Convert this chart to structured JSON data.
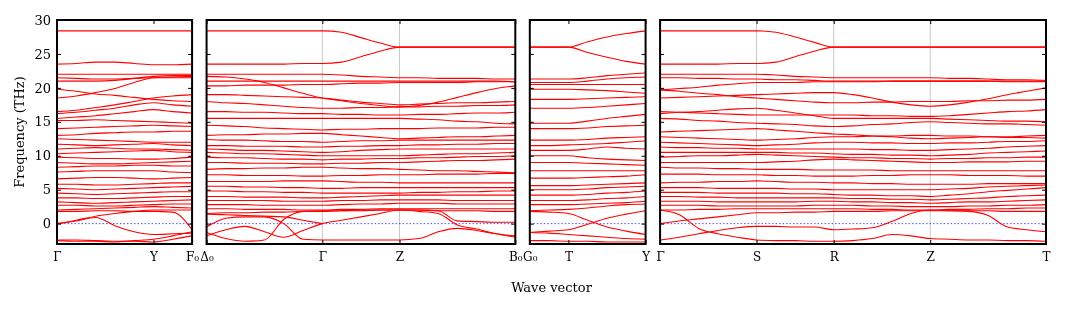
{
  "chart_data": [
    {
      "type": "line",
      "ylabel": "Frequency (THz)",
      "color": "#ff0000",
      "categories": [
        "Γ",
        null,
        null,
        null,
        null,
        "Y",
        null,
        "F₀"
      ],
      "ylim": [
        -3,
        30
      ],
      "yticks": [
        0,
        5,
        10,
        15,
        20,
        25,
        30
      ],
      "ref_lines": [
        {
          "axis": "y",
          "value": 0,
          "color": "#0000ff",
          "line_style": "dotted"
        }
      ],
      "series": [
        {
          "values": [
            28.4,
            28.4,
            28.4,
            28.4,
            28.4,
            28.4,
            28.4,
            28.4
          ]
        },
        {
          "values": [
            23.5,
            23.6,
            23.8,
            23.8,
            23.6,
            23.4,
            23.4,
            23.5
          ]
        },
        {
          "values": [
            22.0,
            22.0,
            22.0,
            22.0,
            22.0,
            22.0,
            22.0,
            22.0
          ]
        },
        {
          "values": [
            21.5,
            21.4,
            21.3,
            21.3,
            21.4,
            21.5,
            21.5,
            21.5
          ]
        },
        {
          "values": [
            21.0,
            21.0,
            21.0,
            21.1,
            21.4,
            21.7,
            21.8,
            21.8
          ]
        },
        {
          "values": [
            18.5,
            18.8,
            19.3,
            19.9,
            20.8,
            21.5,
            21.6,
            21.7
          ]
        },
        {
          "values": [
            19.8,
            19.5,
            19.1,
            18.9,
            18.6,
            18.3,
            18.1,
            18.0
          ]
        },
        {
          "values": [
            16.5,
            16.7,
            17.1,
            17.5,
            18.0,
            18.5,
            18.8,
            19.0
          ]
        },
        {
          "values": [
            16.2,
            16.4,
            16.7,
            17.0,
            17.5,
            17.8,
            17.5,
            17.3
          ]
        },
        {
          "values": [
            15.5,
            15.7,
            15.9,
            16.2,
            16.5,
            16.8,
            16.5,
            16.3
          ]
        },
        {
          "values": [
            15.2,
            15.2,
            15.3,
            15.2,
            15.1,
            15.0,
            14.9,
            14.8
          ]
        },
        {
          "values": [
            14.0,
            14.1,
            14.2,
            14.3,
            14.4,
            14.5,
            14.4,
            14.3
          ]
        },
        {
          "values": [
            13.0,
            13.1,
            13.3,
            13.4,
            13.5,
            13.5,
            13.6,
            13.6
          ]
        },
        {
          "values": [
            12.5,
            12.4,
            12.3,
            12.2,
            12.1,
            12.0,
            12.0,
            12.0
          ]
        },
        {
          "values": [
            11.7,
            11.6,
            11.5,
            11.6,
            11.7,
            11.8,
            11.6,
            11.5
          ]
        },
        {
          "values": [
            11.0,
            11.1,
            11.2,
            11.1,
            11.0,
            11.0,
            10.9,
            10.8
          ]
        },
        {
          "values": [
            10.3,
            10.4,
            10.5,
            10.6,
            10.7,
            10.8,
            10.6,
            10.5
          ]
        },
        {
          "values": [
            9.8,
            9.7,
            9.6,
            9.6,
            9.5,
            9.5,
            9.6,
            9.8
          ]
        },
        {
          "values": [
            9.0,
            8.9,
            8.8,
            8.8,
            8.9,
            9.0,
            9.1,
            9.2
          ]
        },
        {
          "values": [
            8.3,
            8.4,
            8.5,
            8.5,
            8.6,
            8.6,
            8.5,
            8.5
          ]
        },
        {
          "values": [
            7.6,
            7.7,
            7.8,
            7.8,
            7.8,
            7.8,
            7.6,
            7.5
          ]
        },
        {
          "values": [
            6.6,
            6.7,
            6.8,
            6.8,
            6.7,
            6.6,
            6.7,
            6.8
          ]
        },
        {
          "values": [
            5.8,
            5.8,
            5.7,
            5.7,
            5.8,
            5.9,
            6.0,
            6.0
          ]
        },
        {
          "values": [
            5.2,
            5.1,
            5.0,
            5.1,
            5.2,
            5.3,
            5.4,
            5.5
          ]
        },
        {
          "values": [
            4.5,
            4.4,
            4.3,
            4.4,
            4.5,
            4.6,
            4.7,
            4.7
          ]
        },
        {
          "values": [
            3.8,
            3.8,
            3.7,
            3.7,
            3.8,
            3.9,
            4.0,
            4.0
          ]
        },
        {
          "values": [
            3.2,
            3.1,
            3.0,
            3.1,
            3.2,
            3.3,
            3.4,
            3.5
          ]
        },
        {
          "values": [
            2.7,
            2.7,
            2.6,
            2.6,
            2.7,
            2.8,
            2.9,
            2.9
          ]
        },
        {
          "values": [
            2.0,
            2.1,
            2.2,
            2.3,
            2.4,
            2.5,
            2.4,
            2.3
          ]
        },
        {
          "values": [
            0,
            0.5,
            1.1,
            1.5,
            1.8,
            2.0,
            2.0,
            2.0
          ]
        },
        {
          "values": [
            0,
            0.4,
            0.9,
            -0.3,
            -1.2,
            -1.6,
            -1.5,
            -1.4
          ]
        },
        {
          "values": [
            1.8,
            1.8,
            1.9,
            1.9,
            1.8,
            1.8,
            1.7,
            -0.9
          ]
        },
        {
          "values": [
            -2.4,
            -2.4,
            -2.5,
            -2.6,
            -2.6,
            -2.7,
            -2.3,
            -1.8
          ]
        },
        {
          "values": [
            -2.5,
            -2.6,
            -2.6,
            -2.7,
            -2.5,
            -2.3,
            -1.8,
            -1.2
          ]
        }
      ]
    },
    {
      "type": "line",
      "color": "#ff0000",
      "grid": "x",
      "tick_labels": "x",
      "categories": [
        "Δ₀",
        null,
        null,
        null,
        null,
        null,
        "Γ",
        null,
        null,
        null,
        "Z",
        null,
        null,
        null,
        null,
        null,
        "B₀"
      ],
      "ylim": [
        -3,
        30
      ],
      "yticks": [
        0,
        5,
        10,
        15,
        20,
        25,
        30
      ],
      "ref_lines": [
        {
          "axis": "y",
          "value": 0,
          "color": "#0000ff",
          "line_style": "dotted"
        }
      ],
      "series": [
        {
          "values": [
            28.4,
            28.4,
            28.4,
            28.4,
            28.4,
            28.4,
            28.4,
            28.2,
            27.4,
            26.6,
            26.0,
            26.0,
            26.0,
            26.0,
            26.0,
            26.0,
            26.0
          ]
        },
        {
          "values": [
            23.5,
            23.5,
            23.5,
            23.5,
            23.5,
            23.6,
            23.6,
            23.8,
            24.6,
            25.4,
            26.0,
            26.0,
            26.0,
            26.0,
            26.0,
            26.0,
            26.0
          ]
        },
        {
          "values": [
            22.0,
            22.0,
            22.0,
            22.0,
            22.0,
            22.0,
            22.0,
            21.9,
            21.7,
            21.6,
            21.5,
            21.5,
            21.4,
            21.4,
            21.4,
            21.3,
            21.3
          ]
        },
        {
          "values": [
            21.7,
            21.6,
            21.3,
            20.8,
            20.0,
            19.2,
            18.5,
            18.1,
            17.7,
            17.4,
            17.2,
            17.4,
            17.9,
            18.6,
            19.3,
            19.9,
            20.3
          ]
        },
        {
          "values": [
            21.0,
            21.0,
            21.0,
            21.0,
            21.0,
            21.0,
            21.0,
            21.0,
            21.0,
            21.0,
            21.0,
            21.0,
            21.0,
            21.0,
            21.0,
            21.0,
            20.9
          ]
        },
        {
          "values": [
            20.3,
            20.3,
            20.4,
            20.4,
            20.4,
            20.5,
            20.5,
            20.6,
            20.7,
            20.7,
            20.8,
            20.8,
            20.8,
            20.8,
            20.9,
            20.9,
            20.9
          ]
        },
        {
          "values": [
            19.0,
            19.0,
            18.9,
            18.8,
            18.7,
            18.6,
            18.5,
            18.2,
            17.9,
            17.7,
            17.5,
            17.6,
            17.7,
            17.8,
            17.8,
            17.9,
            18.0
          ]
        },
        {
          "values": [
            18.0,
            17.8,
            17.7,
            17.5,
            17.3,
            17.1,
            17.0,
            17.0,
            17.1,
            17.1,
            17.2,
            17.2,
            17.3,
            17.3,
            17.4,
            17.4,
            17.5
          ]
        },
        {
          "values": [
            16.5,
            16.5,
            16.4,
            16.4,
            16.3,
            16.2,
            16.2,
            16.1,
            16.1,
            16.0,
            16.0,
            16.1,
            16.1,
            16.2,
            16.3,
            16.3,
            16.4
          ]
        },
        {
          "values": [
            15.5,
            15.5,
            15.5,
            15.5,
            15.5,
            15.5,
            15.5,
            15.5,
            15.5,
            15.5,
            15.5,
            15.4,
            15.3,
            15.1,
            15.0,
            14.8,
            14.7
          ]
        },
        {
          "values": [
            14.5,
            14.4,
            14.3,
            14.1,
            14.0,
            13.9,
            13.8,
            13.9,
            13.9,
            14.0,
            14.0,
            14.0,
            14.1,
            14.1,
            14.1,
            14.2,
            14.2
          ]
        },
        {
          "values": [
            13.0,
            13.1,
            13.1,
            13.2,
            13.2,
            13.3,
            13.3,
            13.1,
            12.9,
            12.7,
            12.5,
            12.6,
            12.7,
            12.8,
            12.8,
            12.9,
            13.0
          ]
        },
        {
          "values": [
            12.4,
            12.3,
            12.3,
            12.2,
            12.1,
            12.1,
            12.0,
            12.1,
            12.2,
            12.2,
            12.3,
            12.3,
            12.3,
            12.3,
            12.3,
            12.3,
            12.3
          ]
        },
        {
          "values": [
            11.5,
            11.5,
            11.4,
            11.4,
            11.4,
            11.3,
            11.3,
            11.4,
            11.4,
            11.5,
            11.5,
            11.6,
            11.6,
            11.7,
            11.7,
            11.8,
            11.8
          ]
        },
        {
          "values": [
            11.0,
            10.9,
            10.8,
            10.8,
            10.7,
            10.6,
            10.5,
            10.6,
            10.8,
            10.9,
            11.0,
            11.0,
            11.0,
            11.0,
            11.0,
            11.0,
            11.0
          ]
        },
        {
          "values": [
            10.5,
            10.4,
            10.3,
            10.3,
            10.2,
            10.1,
            10.0,
            10.0,
            10.0,
            10.0,
            10.0,
            10.1,
            10.2,
            10.3,
            10.3,
            10.4,
            10.5
          ]
        },
        {
          "values": [
            9.8,
            9.7,
            9.7,
            9.6,
            9.5,
            9.5,
            9.4,
            9.5,
            9.5,
            9.6,
            9.6,
            9.7,
            9.7,
            9.8,
            9.9,
            9.9,
            10.0
          ]
        },
        {
          "values": [
            9.0,
            9.0,
            8.9,
            8.9,
            8.9,
            8.8,
            8.8,
            8.9,
            8.9,
            9.0,
            9.0,
            9.1,
            9.2,
            9.3,
            9.3,
            9.4,
            9.5
          ]
        },
        {
          "values": [
            8.0,
            8.1,
            8.1,
            8.2,
            8.2,
            8.3,
            8.3,
            8.2,
            8.1,
            8.1,
            8.0,
            7.9,
            7.8,
            7.8,
            7.7,
            7.6,
            7.5
          ]
        },
        {
          "values": [
            7.2,
            7.2,
            7.1,
            7.1,
            7.1,
            7.0,
            7.0,
            7.1,
            7.1,
            7.2,
            7.2,
            7.2,
            7.3,
            7.3,
            7.3,
            7.4,
            7.4
          ]
        },
        {
          "values": [
            6.2,
            6.2,
            6.2,
            6.2,
            6.3,
            6.3,
            6.3,
            6.2,
            6.1,
            6.1,
            6.0,
            6.0,
            6.0,
            6.0,
            6.0,
            6.0,
            6.0
          ]
        },
        {
          "values": [
            5.5,
            5.5,
            5.4,
            5.4,
            5.3,
            5.3,
            5.2,
            5.2,
            5.3,
            5.3,
            5.3,
            5.3,
            5.3,
            5.3,
            5.3,
            5.3,
            5.3
          ]
        },
        {
          "values": [
            4.8,
            4.8,
            4.7,
            4.7,
            4.6,
            4.6,
            4.5,
            4.5,
            4.5,
            4.5,
            4.5,
            4.6,
            4.6,
            4.7,
            4.7,
            4.8,
            4.8
          ]
        },
        {
          "values": [
            4.0,
            4.0,
            3.9,
            3.9,
            3.9,
            3.8,
            3.8,
            3.9,
            4.0,
            4.1,
            4.2,
            4.2,
            4.2,
            4.2,
            4.2,
            4.2,
            4.2
          ]
        },
        {
          "values": [
            3.4,
            3.4,
            3.4,
            3.4,
            3.3,
            3.3,
            3.3,
            3.4,
            3.4,
            3.5,
            3.5,
            3.5,
            3.5,
            3.4,
            3.4,
            3.4,
            3.4
          ]
        },
        {
          "values": [
            2.8,
            2.8,
            2.8,
            2.7,
            2.7,
            2.7,
            2.7,
            2.8,
            2.9,
            2.9,
            3.0,
            3.0,
            3.0,
            2.9,
            2.9,
            2.9,
            2.9
          ]
        },
        {
          "values": [
            2.2,
            2.2,
            2.1,
            2.1,
            2.1,
            2.0,
            2.0,
            2.1,
            2.1,
            2.2,
            2.2,
            2.2,
            2.2,
            2.2,
            2.2,
            2.2,
            2.2
          ]
        },
        {
          "values": [
            1.5,
            1.6,
            1.6,
            1.7,
            1.7,
            1.8,
            1.8,
            1.9,
            1.9,
            2.0,
            2.0,
            2.0,
            1.9,
            1.9,
            1.9,
            1.8,
            1.8
          ]
        },
        {
          "values": [
            -0.5,
            0.8,
            1.0,
            1.0,
            0.0,
            -2.3,
            -2.4,
            -2.4,
            -2.4,
            -2.4,
            -2.4,
            -2.2,
            -1.2,
            -0.7,
            -1.0,
            -1.5,
            -1.8
          ]
        },
        {
          "values": [
            -1.3,
            -2.2,
            -2.6,
            -2.4,
            0.6,
            1.8,
            1.9,
            1.9,
            2.0,
            2.0,
            2.0,
            1.8,
            1.5,
            -0.2,
            -0.8,
            -1.5,
            -2.0
          ]
        },
        {
          "values": [
            -1.8,
            -0.9,
            -0.4,
            -1.2,
            -2.0,
            -1.0,
            0,
            0.5,
            1.0,
            1.5,
            2.0,
            2.0,
            1.9,
            0.4,
            0.3,
            0.2,
            0.2
          ]
        },
        {
          "values": [
            1.4,
            1.3,
            1.2,
            1.1,
            1.0,
            0.5,
            0,
            null,
            null,
            null,
            null,
            null,
            null,
            null,
            null,
            null,
            null
          ]
        }
      ]
    },
    {
      "type": "line",
      "xlabel": "Wave vector",
      "color": "#ff0000",
      "tick_labels": "x",
      "categories": [
        "G₀",
        null,
        "T",
        null,
        null,
        null,
        "Y"
      ],
      "ylim": [
        -3,
        30
      ],
      "yticks": [
        0,
        5,
        10,
        15,
        20,
        25,
        30
      ],
      "ref_lines": [
        {
          "axis": "y",
          "value": 0,
          "color": "#0000ff",
          "line_style": "dotted"
        }
      ],
      "series": [
        {
          "values": [
            26.0,
            26.0,
            26.0,
            26.8,
            27.5,
            28.0,
            28.4
          ]
        },
        {
          "values": [
            26.0,
            26.0,
            26.0,
            25.2,
            24.5,
            23.9,
            23.5
          ]
        },
        {
          "values": [
            21.3,
            21.3,
            21.3,
            21.5,
            21.8,
            22.0,
            22.2
          ]
        },
        {
          "values": [
            20.8,
            20.8,
            20.8,
            21.0,
            21.3,
            21.5,
            21.6
          ]
        },
        {
          "values": [
            20.5,
            20.5,
            20.5,
            20.5,
            20.5,
            20.5,
            20.5
          ]
        },
        {
          "values": [
            19.8,
            19.8,
            19.8,
            19.7,
            19.6,
            19.4,
            19.2
          ]
        },
        {
          "values": [
            18.3,
            18.3,
            18.3,
            18.4,
            18.5,
            18.6,
            18.7
          ]
        },
        {
          "values": [
            17.0,
            17.0,
            17.0,
            17.1,
            17.3,
            17.5,
            17.7
          ]
        },
        {
          "values": [
            14.8,
            14.8,
            14.8,
            15.1,
            15.5,
            15.8,
            16.1
          ]
        },
        {
          "values": [
            14.0,
            14.0,
            14.0,
            14.1,
            14.3,
            14.4,
            14.5
          ]
        },
        {
          "values": [
            12.3,
            12.3,
            12.3,
            12.4,
            12.6,
            12.7,
            12.8
          ]
        },
        {
          "values": [
            11.5,
            11.5,
            11.6,
            11.7,
            11.8,
            12.0,
            12.2
          ]
        },
        {
          "values": [
            10.8,
            10.8,
            10.8,
            11.0,
            11.3,
            11.1,
            11.0
          ]
        },
        {
          "values": [
            10.0,
            10.0,
            10.0,
            9.7,
            9.5,
            9.4,
            9.3
          ]
        },
        {
          "values": [
            9.0,
            9.0,
            9.0,
            8.9,
            8.8,
            8.7,
            8.6
          ]
        },
        {
          "values": [
            7.8,
            7.8,
            7.8,
            7.8,
            7.8,
            7.8,
            7.8
          ]
        },
        {
          "values": [
            6.7,
            6.7,
            6.7,
            6.8,
            6.9,
            7.0,
            7.2
          ]
        },
        {
          "values": [
            5.6,
            5.6,
            5.6,
            5.7,
            5.8,
            5.9,
            6.0
          ]
        },
        {
          "values": [
            5.0,
            5.0,
            5.0,
            5.1,
            5.3,
            5.4,
            5.5
          ]
        },
        {
          "values": [
            4.2,
            4.2,
            4.2,
            4.3,
            4.5,
            4.6,
            4.8
          ]
        },
        {
          "values": [
            3.4,
            3.4,
            3.4,
            3.5,
            3.7,
            3.8,
            4.0
          ]
        },
        {
          "values": [
            2.8,
            2.8,
            2.8,
            2.9,
            3.0,
            3.1,
            3.3
          ]
        },
        {
          "values": [
            1.9,
            2.0,
            2.1,
            2.3,
            2.6,
            2.8,
            2.9
          ]
        },
        {
          "values": [
            1.8,
            1.7,
            1.5,
            0.5,
            -0.5,
            -1.1,
            -1.6
          ]
        },
        {
          "values": [
            -1.3,
            -1.1,
            -0.9,
            -0.1,
            0.8,
            1.4,
            1.9
          ]
        },
        {
          "values": [
            -1.3,
            -1.4,
            -1.6,
            -1.8,
            -2.0,
            -2.2,
            -2.3
          ]
        },
        {
          "values": [
            -2.5,
            -2.5,
            -2.6,
            -2.6,
            -2.7,
            -2.7,
            -2.7
          ]
        }
      ]
    },
    {
      "type": "line",
      "color": "#ff0000",
      "grid": "x",
      "tick_labels": "x",
      "categories": [
        "Γ",
        null,
        null,
        null,
        null,
        "S",
        null,
        null,
        null,
        "R",
        null,
        null,
        null,
        null,
        "Z",
        null,
        null,
        null,
        null,
        null,
        "T"
      ],
      "ylim": [
        -3,
        30
      ],
      "yticks": [
        0,
        5,
        10,
        15,
        20,
        25,
        30
      ],
      "ref_lines": [
        {
          "axis": "y",
          "value": 0,
          "color": "#0000ff",
          "line_style": "dotted"
        }
      ],
      "series": [
        {
          "values": [
            28.4,
            28.4,
            28.4,
            28.4,
            28.4,
            28.4,
            28.2,
            27.5,
            26.7,
            26.0,
            26.0,
            26.0,
            26.0,
            26.0,
            26.0,
            26.0,
            26.0,
            26.0,
            26.0,
            26.0,
            26.0
          ]
        },
        {
          "values": [
            23.5,
            23.5,
            23.5,
            23.5,
            23.6,
            23.6,
            23.8,
            24.6,
            25.4,
            26.0,
            26.0,
            26.0,
            26.0,
            26.0,
            26.0,
            26.0,
            26.0,
            26.0,
            26.0,
            26.0,
            26.0
          ]
        },
        {
          "values": [
            22.0,
            22.0,
            22.0,
            22.0,
            22.0,
            22.0,
            21.9,
            21.7,
            21.6,
            21.5,
            21.5,
            21.5,
            21.5,
            21.5,
            21.5,
            21.4,
            21.4,
            21.3,
            21.2,
            21.2,
            21.1
          ]
        },
        {
          "values": [
            21.5,
            21.5,
            21.4,
            21.4,
            21.3,
            21.3,
            21.2,
            21.2,
            21.1,
            21.0,
            21.0,
            21.0,
            21.0,
            21.0,
            21.0,
            21.0,
            21.0,
            21.0,
            21.0,
            21.0,
            21.0
          ]
        },
        {
          "values": [
            19.7,
            19.9,
            20.1,
            20.4,
            20.6,
            20.8,
            20.8,
            20.8,
            20.9,
            20.9,
            20.9,
            20.9,
            21.0,
            21.0,
            21.0,
            21.0,
            21.0,
            21.0,
            20.9,
            20.9,
            20.9
          ]
        },
        {
          "values": [
            18.5,
            18.6,
            18.7,
            18.8,
            18.9,
            19.0,
            19.1,
            19.2,
            19.3,
            19.3,
            19.0,
            18.5,
            17.9,
            17.5,
            17.3,
            17.5,
            17.9,
            18.4,
            19.0,
            19.5,
            20.0
          ]
        },
        {
          "values": [
            19.7,
            19.5,
            19.2,
            19.0,
            18.7,
            18.5,
            18.3,
            18.1,
            17.9,
            17.8,
            17.8,
            17.9,
            17.9,
            18.0,
            18.0,
            18.0,
            18.1,
            18.1,
            18.2,
            18.2,
            18.3
          ]
        },
        {
          "values": [
            16.5,
            16.4,
            16.3,
            16.2,
            16.1,
            16.0,
            16.0,
            16.0,
            16.0,
            16.0,
            16.0,
            15.9,
            15.9,
            15.8,
            15.8,
            15.9,
            16.1,
            16.3,
            16.5,
            16.6,
            16.8
          ]
        },
        {
          "values": [
            16.2,
            16.4,
            16.5,
            16.7,
            16.9,
            17.0,
            16.7,
            16.3,
            15.9,
            15.5,
            15.5,
            15.5,
            15.5,
            15.5,
            15.5,
            15.4,
            15.3,
            15.2,
            15.1,
            15.1,
            15.0
          ]
        },
        {
          "values": [
            15.5,
            15.4,
            15.2,
            15.1,
            14.9,
            14.8,
            14.7,
            14.6,
            14.4,
            14.3,
            14.4,
            14.6,
            14.7,
            14.9,
            15.0,
            14.9,
            14.8,
            14.7,
            14.7,
            14.6,
            14.5
          ]
        },
        {
          "values": [
            13.5,
            13.6,
            13.7,
            13.8,
            13.9,
            14.0,
            13.8,
            13.6,
            13.4,
            13.2,
            13.1,
            12.9,
            12.8,
            12.6,
            12.5,
            12.6,
            12.7,
            12.8,
            12.8,
            12.9,
            13.0
          ]
        },
        {
          "values": [
            12.8,
            12.7,
            12.6,
            12.5,
            12.4,
            12.3,
            12.4,
            12.5,
            12.7,
            12.8,
            12.8,
            12.9,
            12.9,
            13.0,
            13.0,
            12.9,
            12.9,
            12.8,
            12.7,
            12.7,
            12.6
          ]
        },
        {
          "values": [
            12.0,
            11.9,
            11.8,
            11.7,
            11.6,
            11.5,
            11.6,
            11.7,
            11.9,
            12.0,
            12.0,
            11.9,
            11.9,
            11.8,
            11.8,
            11.9,
            11.9,
            12.0,
            12.1,
            12.1,
            12.2
          ]
        },
        {
          "values": [
            11.3,
            11.2,
            11.2,
            11.1,
            11.1,
            11.0,
            11.0,
            11.0,
            11.0,
            11.0,
            11.0,
            10.9,
            10.9,
            10.8,
            10.8,
            10.9,
            11.0,
            11.1,
            11.3,
            11.4,
            11.5
          ]
        },
        {
          "values": [
            10.5,
            10.5,
            10.5,
            10.5,
            10.5,
            10.5,
            10.5,
            10.4,
            10.4,
            10.3,
            10.2,
            10.2,
            10.1,
            10.1,
            10.0,
            10.1,
            10.2,
            10.4,
            10.5,
            10.6,
            10.7
          ]
        },
        {
          "values": [
            9.8,
            9.9,
            10.0,
            10.0,
            10.1,
            10.2,
            10.1,
            10.0,
            9.9,
            9.8,
            9.7,
            9.7,
            9.6,
            9.6,
            9.5,
            9.6,
            9.6,
            9.7,
            9.7,
            9.8,
            9.8
          ]
        },
        {
          "values": [
            9.0,
            9.0,
            9.0,
            9.0,
            9.0,
            9.0,
            9.1,
            9.2,
            9.4,
            9.5,
            9.4,
            9.3,
            9.2,
            9.1,
            9.0,
            9.0,
            9.1,
            9.1,
            9.1,
            9.2,
            9.2
          ]
        },
        {
          "values": [
            8.3,
            8.2,
            8.2,
            8.1,
            8.1,
            8.0,
            8.0,
            8.0,
            7.9,
            7.9,
            7.9,
            7.9,
            7.8,
            7.8,
            7.8,
            7.8,
            7.8,
            7.8,
            7.8,
            7.8,
            7.8
          ]
        },
        {
          "values": [
            7.3,
            7.3,
            7.3,
            7.2,
            7.2,
            7.2,
            7.1,
            7.1,
            7.0,
            7.0,
            7.0,
            7.1,
            7.1,
            7.2,
            7.2,
            7.2,
            7.1,
            7.1,
            7.1,
            7.0,
            7.0
          ]
        },
        {
          "values": [
            6.0,
            6.1,
            6.1,
            6.2,
            6.2,
            6.3,
            6.2,
            6.1,
            6.1,
            6.0,
            6.0,
            5.9,
            5.9,
            5.8,
            5.8,
            5.8,
            5.8,
            5.9,
            5.9,
            5.9,
            5.9
          ]
        },
        {
          "values": [
            5.3,
            5.3,
            5.3,
            5.2,
            5.2,
            5.2,
            5.2,
            5.1,
            5.1,
            5.0,
            5.0,
            5.0,
            5.0,
            5.0,
            5.0,
            5.1,
            5.2,
            5.4,
            5.5,
            5.6,
            5.7
          ]
        },
        {
          "values": [
            4.6,
            4.6,
            4.6,
            4.5,
            4.5,
            4.5,
            4.5,
            4.4,
            4.4,
            4.3,
            4.2,
            4.2,
            4.1,
            4.1,
            4.0,
            4.2,
            4.4,
            4.7,
            4.9,
            5.1,
            5.3
          ]
        },
        {
          "values": [
            4.0,
            4.0,
            3.9,
            3.9,
            3.8,
            3.8,
            3.8,
            3.8,
            3.8,
            3.8,
            3.7,
            3.7,
            3.6,
            3.6,
            3.5,
            3.6,
            3.7,
            3.8,
            4.0,
            4.1,
            4.2
          ]
        },
        {
          "values": [
            3.3,
            3.3,
            3.3,
            3.2,
            3.2,
            3.2,
            3.2,
            3.2,
            3.3,
            3.3,
            3.2,
            3.2,
            3.1,
            3.1,
            3.0,
            3.1,
            3.2,
            3.2,
            3.3,
            3.4,
            3.5
          ]
        },
        {
          "values": [
            2.7,
            2.7,
            2.7,
            2.6,
            2.6,
            2.6,
            2.6,
            2.6,
            2.7,
            2.7,
            2.7,
            2.6,
            2.6,
            2.5,
            2.5,
            2.5,
            2.6,
            2.6,
            2.7,
            2.7,
            2.8
          ]
        },
        {
          "values": [
            2.0,
            2.0,
            2.1,
            2.1,
            2.2,
            2.2,
            2.2,
            2.2,
            2.2,
            2.2,
            2.2,
            2.1,
            2.1,
            2.0,
            2.0,
            2.1,
            2.1,
            2.2,
            2.2,
            2.3,
            2.3
          ]
        },
        {
          "values": [
            0,
            0.4,
            0.7,
            1.0,
            1.3,
            1.6,
            1.6,
            1.7,
            1.7,
            1.8,
            1.8,
            1.8,
            1.9,
            1.9,
            1.9,
            1.9,
            1.9,
            1.9,
            1.8,
            1.8,
            1.8
          ]
        },
        {
          "values": [
            2.0,
            1.3,
            -0.7,
            -1.5,
            -2.0,
            -2.4,
            -2.5,
            -2.5,
            -2.6,
            -2.6,
            -2.5,
            -2.2,
            -1.6,
            -1.8,
            -2.2,
            -2.3,
            -2.4,
            -2.4,
            -2.5,
            -2.5,
            -2.6
          ]
        },
        {
          "values": [
            -2.4,
            -2.0,
            -1.5,
            -1.0,
            -0.6,
            -0.4,
            -0.4,
            -0.5,
            -0.5,
            -0.9,
            -0.8,
            -0.6,
            0.3,
            1.5,
            2.0,
            1.9,
            1.8,
            1.2,
            -0.5,
            -0.9,
            -1.2
          ]
        }
      ]
    }
  ]
}
